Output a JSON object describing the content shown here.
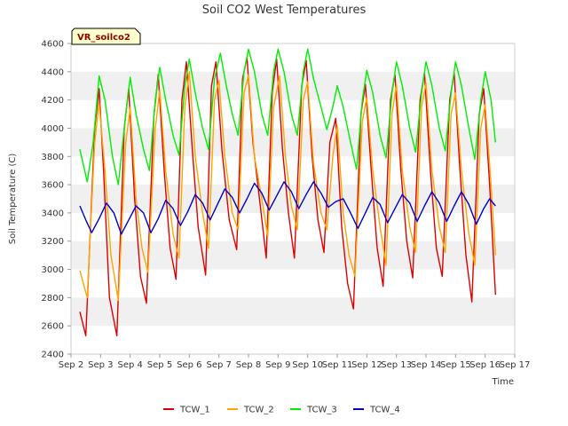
{
  "chart_data": {
    "type": "line",
    "title": "Soil CO2 West Temperatures",
    "xlabel": "Time",
    "ylabel": "Soil Temperature (C)",
    "station_label": "VR_soilco2",
    "xlim": [
      2,
      17
    ],
    "ylim": [
      2400,
      4600
    ],
    "x_ticks": [
      2,
      3,
      4,
      5,
      6,
      7,
      8,
      9,
      10,
      11,
      12,
      13,
      14,
      15,
      16,
      17
    ],
    "x_tick_labels": [
      "Sep 2",
      "Sep 3",
      "Sep 4",
      "Sep 5",
      "Sep 6",
      "Sep 7",
      "Sep 8",
      "Sep 9",
      "Sep 10",
      "Sep 11",
      "Sep 12",
      "Sep 13",
      "Sep 14",
      "Sep 15",
      "Sep 16",
      "Sep 17"
    ],
    "y_ticks": [
      2400,
      2600,
      2800,
      3000,
      3200,
      3400,
      3600,
      3800,
      4000,
      4200,
      4400,
      4600
    ],
    "y_tick_labels": [
      "2400",
      "2600",
      "2800",
      "3000",
      "3200",
      "3400",
      "3600",
      "3800",
      "4000",
      "4200",
      "4400",
      "4600"
    ],
    "grid": "horizontal bands",
    "legend_placement": "bottom",
    "colors": {
      "TCW_1": "#dd0000",
      "TCW_2": "#ffa500",
      "TCW_3": "#00ee00",
      "TCW_4": "#0000cc"
    },
    "series": [
      {
        "name": "TCW_1",
        "points": [
          [
            2.3,
            2700
          ],
          [
            2.5,
            2530
          ],
          [
            2.8,
            4000
          ],
          [
            2.95,
            4280
          ],
          [
            3.1,
            3700
          ],
          [
            3.3,
            2800
          ],
          [
            3.55,
            2530
          ],
          [
            3.8,
            4000
          ],
          [
            3.95,
            4280
          ],
          [
            4.15,
            3500
          ],
          [
            4.35,
            2950
          ],
          [
            4.55,
            2760
          ],
          [
            4.8,
            4080
          ],
          [
            4.95,
            4380
          ],
          [
            5.15,
            3700
          ],
          [
            5.35,
            3150
          ],
          [
            5.55,
            2930
          ],
          [
            5.75,
            4200
          ],
          [
            5.9,
            4470
          ],
          [
            6.1,
            3850
          ],
          [
            6.3,
            3300
          ],
          [
            6.55,
            2960
          ],
          [
            6.75,
            4300
          ],
          [
            6.9,
            4470
          ],
          [
            7.1,
            3850
          ],
          [
            7.35,
            3350
          ],
          [
            7.6,
            3140
          ],
          [
            7.8,
            4350
          ],
          [
            7.95,
            4500
          ],
          [
            8.15,
            3900
          ],
          [
            8.4,
            3450
          ],
          [
            8.6,
            3080
          ],
          [
            8.8,
            4250
          ],
          [
            8.95,
            4490
          ],
          [
            9.15,
            3850
          ],
          [
            9.35,
            3400
          ],
          [
            9.55,
            3080
          ],
          [
            9.8,
            4300
          ],
          [
            9.95,
            4480
          ],
          [
            10.15,
            3800
          ],
          [
            10.35,
            3350
          ],
          [
            10.55,
            3120
          ],
          [
            10.75,
            3900
          ],
          [
            10.95,
            4070
          ],
          [
            11.15,
            3300
          ],
          [
            11.35,
            2900
          ],
          [
            11.55,
            2720
          ],
          [
            11.8,
            4100
          ],
          [
            11.95,
            4310
          ],
          [
            12.15,
            3700
          ],
          [
            12.35,
            3150
          ],
          [
            12.55,
            2880
          ],
          [
            12.8,
            4200
          ],
          [
            12.95,
            4380
          ],
          [
            13.15,
            3700
          ],
          [
            13.35,
            3200
          ],
          [
            13.55,
            2940
          ],
          [
            13.8,
            4200
          ],
          [
            13.95,
            4390
          ],
          [
            14.15,
            3700
          ],
          [
            14.35,
            3150
          ],
          [
            14.55,
            2950
          ],
          [
            14.8,
            4200
          ],
          [
            14.95,
            4390
          ],
          [
            15.15,
            3700
          ],
          [
            15.35,
            3100
          ],
          [
            15.55,
            2770
          ],
          [
            15.8,
            4100
          ],
          [
            15.95,
            4280
          ],
          [
            16.15,
            3600
          ],
          [
            16.35,
            2820
          ]
        ]
      },
      {
        "name": "TCW_2",
        "points": [
          [
            2.3,
            2990
          ],
          [
            2.55,
            2800
          ],
          [
            2.8,
            3900
          ],
          [
            2.95,
            4180
          ],
          [
            3.15,
            3700
          ],
          [
            3.35,
            3100
          ],
          [
            3.6,
            2780
          ],
          [
            3.85,
            3900
          ],
          [
            4.0,
            4150
          ],
          [
            4.2,
            3500
          ],
          [
            4.4,
            3150
          ],
          [
            4.6,
            2980
          ],
          [
            4.85,
            4000
          ],
          [
            5.0,
            4270
          ],
          [
            5.2,
            3700
          ],
          [
            5.45,
            3250
          ],
          [
            5.65,
            3080
          ],
          [
            5.85,
            4150
          ],
          [
            6.0,
            4400
          ],
          [
            6.2,
            3800
          ],
          [
            6.45,
            3400
          ],
          [
            6.65,
            3150
          ],
          [
            6.85,
            4200
          ],
          [
            7.0,
            4340
          ],
          [
            7.2,
            3800
          ],
          [
            7.45,
            3400
          ],
          [
            7.65,
            3280
          ],
          [
            7.85,
            4250
          ],
          [
            8.0,
            4380
          ],
          [
            8.2,
            3800
          ],
          [
            8.45,
            3500
          ],
          [
            8.65,
            3230
          ],
          [
            8.85,
            4150
          ],
          [
            9.05,
            4370
          ],
          [
            9.25,
            3800
          ],
          [
            9.45,
            3450
          ],
          [
            9.65,
            3280
          ],
          [
            9.85,
            4200
          ],
          [
            10.0,
            4330
          ],
          [
            10.2,
            3750
          ],
          [
            10.45,
            3400
          ],
          [
            10.65,
            3280
          ],
          [
            10.85,
            3800
          ],
          [
            11.0,
            4020
          ],
          [
            11.2,
            3400
          ],
          [
            11.4,
            3100
          ],
          [
            11.6,
            2950
          ],
          [
            11.85,
            4050
          ],
          [
            12.0,
            4220
          ],
          [
            12.2,
            3700
          ],
          [
            12.45,
            3300
          ],
          [
            12.65,
            3030
          ],
          [
            12.85,
            4100
          ],
          [
            13.0,
            4310
          ],
          [
            13.2,
            3700
          ],
          [
            13.45,
            3300
          ],
          [
            13.65,
            3120
          ],
          [
            13.85,
            4150
          ],
          [
            14.0,
            4320
          ],
          [
            14.2,
            3700
          ],
          [
            14.45,
            3300
          ],
          [
            14.65,
            3120
          ],
          [
            14.85,
            4100
          ],
          [
            15.0,
            4250
          ],
          [
            15.2,
            3700
          ],
          [
            15.45,
            3250
          ],
          [
            15.65,
            3030
          ],
          [
            15.85,
            4000
          ],
          [
            16.0,
            4170
          ],
          [
            16.2,
            3600
          ],
          [
            16.35,
            3100
          ]
        ]
      },
      {
        "name": "TCW_3",
        "points": [
          [
            2.3,
            3850
          ],
          [
            2.55,
            3620
          ],
          [
            2.75,
            3900
          ],
          [
            2.95,
            4370
          ],
          [
            3.15,
            4200
          ],
          [
            3.4,
            3800
          ],
          [
            3.6,
            3600
          ],
          [
            3.85,
            4100
          ],
          [
            4.0,
            4360
          ],
          [
            4.2,
            4100
          ],
          [
            4.45,
            3850
          ],
          [
            4.65,
            3700
          ],
          [
            4.85,
            4200
          ],
          [
            5.0,
            4430
          ],
          [
            5.2,
            4200
          ],
          [
            5.45,
            3950
          ],
          [
            5.65,
            3810
          ],
          [
            5.85,
            4300
          ],
          [
            6.0,
            4490
          ],
          [
            6.2,
            4250
          ],
          [
            6.45,
            4000
          ],
          [
            6.65,
            3850
          ],
          [
            6.85,
            4350
          ],
          [
            7.05,
            4530
          ],
          [
            7.25,
            4300
          ],
          [
            7.45,
            4100
          ],
          [
            7.65,
            3950
          ],
          [
            7.85,
            4400
          ],
          [
            8.0,
            4560
          ],
          [
            8.2,
            4400
          ],
          [
            8.45,
            4100
          ],
          [
            8.65,
            3950
          ],
          [
            8.85,
            4400
          ],
          [
            9.0,
            4560
          ],
          [
            9.2,
            4400
          ],
          [
            9.45,
            4100
          ],
          [
            9.65,
            3950
          ],
          [
            9.85,
            4400
          ],
          [
            10.0,
            4560
          ],
          [
            10.2,
            4350
          ],
          [
            10.45,
            4150
          ],
          [
            10.65,
            3990
          ],
          [
            10.85,
            4150
          ],
          [
            11.0,
            4300
          ],
          [
            11.2,
            4150
          ],
          [
            11.45,
            3900
          ],
          [
            11.65,
            3710
          ],
          [
            11.85,
            4200
          ],
          [
            12.0,
            4410
          ],
          [
            12.2,
            4250
          ],
          [
            12.45,
            3950
          ],
          [
            12.65,
            3790
          ],
          [
            12.85,
            4250
          ],
          [
            13.0,
            4470
          ],
          [
            13.2,
            4300
          ],
          [
            13.45,
            4000
          ],
          [
            13.65,
            3830
          ],
          [
            13.85,
            4250
          ],
          [
            14.0,
            4470
          ],
          [
            14.2,
            4300
          ],
          [
            14.45,
            4000
          ],
          [
            14.65,
            3840
          ],
          [
            14.85,
            4250
          ],
          [
            15.0,
            4470
          ],
          [
            15.2,
            4300
          ],
          [
            15.45,
            4000
          ],
          [
            15.65,
            3780
          ],
          [
            15.85,
            4200
          ],
          [
            16.0,
            4400
          ],
          [
            16.2,
            4200
          ],
          [
            16.35,
            3900
          ]
        ]
      },
      {
        "name": "TCW_4",
        "points": [
          [
            2.3,
            3450
          ],
          [
            2.5,
            3350
          ],
          [
            2.7,
            3260
          ],
          [
            2.95,
            3360
          ],
          [
            3.2,
            3470
          ],
          [
            3.45,
            3400
          ],
          [
            3.7,
            3250
          ],
          [
            3.95,
            3350
          ],
          [
            4.2,
            3450
          ],
          [
            4.45,
            3400
          ],
          [
            4.7,
            3260
          ],
          [
            4.95,
            3360
          ],
          [
            5.2,
            3490
          ],
          [
            5.45,
            3430
          ],
          [
            5.7,
            3310
          ],
          [
            5.95,
            3410
          ],
          [
            6.2,
            3530
          ],
          [
            6.45,
            3470
          ],
          [
            6.7,
            3350
          ],
          [
            6.95,
            3460
          ],
          [
            7.2,
            3570
          ],
          [
            7.45,
            3510
          ],
          [
            7.7,
            3400
          ],
          [
            7.95,
            3500
          ],
          [
            8.2,
            3610
          ],
          [
            8.45,
            3540
          ],
          [
            8.7,
            3420
          ],
          [
            8.95,
            3520
          ],
          [
            9.2,
            3620
          ],
          [
            9.45,
            3550
          ],
          [
            9.7,
            3430
          ],
          [
            9.95,
            3530
          ],
          [
            10.2,
            3620
          ],
          [
            10.45,
            3540
          ],
          [
            10.7,
            3440
          ],
          [
            10.95,
            3480
          ],
          [
            11.2,
            3500
          ],
          [
            11.45,
            3400
          ],
          [
            11.7,
            3290
          ],
          [
            11.95,
            3400
          ],
          [
            12.2,
            3510
          ],
          [
            12.45,
            3460
          ],
          [
            12.7,
            3330
          ],
          [
            12.95,
            3430
          ],
          [
            13.2,
            3530
          ],
          [
            13.45,
            3470
          ],
          [
            13.7,
            3340
          ],
          [
            13.95,
            3450
          ],
          [
            14.2,
            3550
          ],
          [
            14.45,
            3470
          ],
          [
            14.7,
            3340
          ],
          [
            14.95,
            3450
          ],
          [
            15.2,
            3550
          ],
          [
            15.45,
            3460
          ],
          [
            15.7,
            3320
          ],
          [
            15.95,
            3430
          ],
          [
            16.15,
            3500
          ],
          [
            16.35,
            3450
          ]
        ]
      }
    ]
  }
}
